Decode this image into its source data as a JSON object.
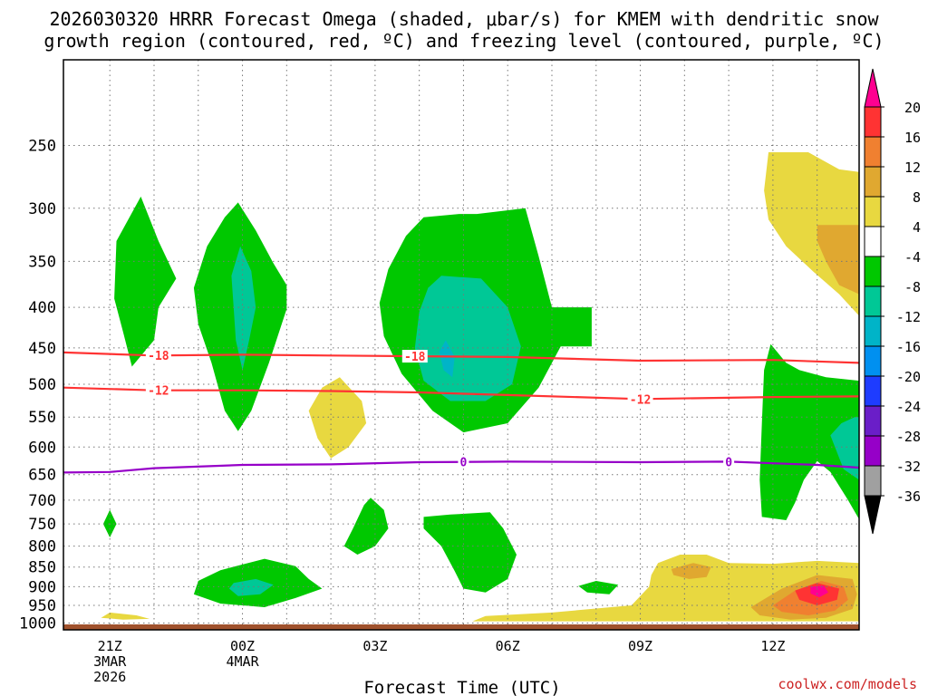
{
  "chart_data": {
    "type": "heatmap",
    "title_lines": [
      "2026030320 HRRR Forecast Omega (shaded, μbar/s) for KMEM with dendritic snow",
      "growth region (contoured, red, ºC) and freezing level (contoured, purple, ºC)"
    ],
    "xlabel": "Forecast Time (UTC)",
    "ylabel": "",
    "watermark": "coolwx.com/models",
    "x_ticks": [
      {
        "hour": 21,
        "lines": [
          "21Z",
          "3MAR",
          "2026"
        ]
      },
      {
        "hour": 24,
        "lines": [
          "00Z",
          "4MAR"
        ]
      },
      {
        "hour": 27,
        "lines": [
          "03Z"
        ]
      },
      {
        "hour": 30,
        "lines": [
          "06Z"
        ]
      },
      {
        "hour": 33,
        "lines": [
          "09Z"
        ]
      },
      {
        "hour": 36,
        "lines": [
          "12Z"
        ]
      }
    ],
    "xlim": [
      19.95,
      37.95
    ],
    "y_ticks": [
      250,
      300,
      350,
      400,
      450,
      500,
      550,
      600,
      650,
      700,
      750,
      800,
      850,
      900,
      950,
      1000
    ],
    "ylim_hpa": [
      195,
      1020
    ],
    "ground_top_hpa": 1004,
    "ground_color": "#a0522d",
    "colorbar": {
      "levels": [
        "20",
        "16",
        "12",
        "8",
        "4",
        "-4",
        "-8",
        "-12",
        "-16",
        "-20",
        "-24",
        "-28",
        "-32",
        "-36"
      ],
      "colors": [
        "#ff0090",
        "#ff3333",
        "#f08030",
        "#e0a830",
        "#e8d840",
        "#ffffff",
        "#00c800",
        "#00c896",
        "#00b4c8",
        "#0090f0",
        "#1e3cff",
        "#6a1ec8",
        "#9600c8",
        "#a0a0a0",
        "#000000"
      ]
    },
    "isotherms": [
      {
        "name": "dendritic-top",
        "label": "-18",
        "color": "#ff3333",
        "points": [
          [
            19.95,
            456
          ],
          [
            22,
            460
          ],
          [
            24,
            459
          ],
          [
            26,
            460
          ],
          [
            28,
            461
          ],
          [
            30,
            462
          ],
          [
            33,
            467
          ],
          [
            36,
            466
          ],
          [
            37.95,
            470
          ]
        ],
        "label_hours": [
          22.1,
          27.9
        ]
      },
      {
        "name": "dendritic-bottom",
        "label": "-12",
        "color": "#ff3333",
        "points": [
          [
            19.95,
            505
          ],
          [
            22,
            509
          ],
          [
            24,
            509
          ],
          [
            26,
            510
          ],
          [
            28,
            512
          ],
          [
            30,
            516
          ],
          [
            33,
            522
          ],
          [
            36,
            519
          ],
          [
            37.95,
            518
          ]
        ],
        "label_hours": [
          22.1,
          33.0
        ]
      },
      {
        "name": "freezing-level",
        "label": "0",
        "color": "#9600c8",
        "points": [
          [
            19.95,
            646
          ],
          [
            21,
            645
          ],
          [
            22,
            638
          ],
          [
            24,
            632
          ],
          [
            26,
            631
          ],
          [
            28,
            627
          ],
          [
            30,
            626
          ],
          [
            33,
            627
          ],
          [
            35,
            626
          ],
          [
            37,
            632
          ],
          [
            37.95,
            637
          ]
        ],
        "label_hours": [
          29.0,
          35.0
        ]
      }
    ],
    "omega_regions": [
      {
        "name": "omega-green-a",
        "level": "-4",
        "poly": [
          [
            21.7,
            290
          ],
          [
            22.1,
            330
          ],
          [
            22.5,
            368
          ],
          [
            22.1,
            400
          ],
          [
            22.0,
            440
          ],
          [
            21.5,
            475
          ],
          [
            21.3,
            430
          ],
          [
            21.1,
            390
          ],
          [
            21.15,
            330
          ]
        ]
      },
      {
        "name": "omega-green-b",
        "level": "-4",
        "poly": [
          [
            23.9,
            295
          ],
          [
            24.3,
            320
          ],
          [
            24.7,
            352
          ],
          [
            25.0,
            375
          ],
          [
            25.0,
            402
          ],
          [
            24.6,
            470
          ],
          [
            24.2,
            540
          ],
          [
            23.9,
            573
          ],
          [
            23.6,
            540
          ],
          [
            23.3,
            470
          ],
          [
            23.0,
            420
          ],
          [
            22.9,
            378
          ],
          [
            23.2,
            335
          ],
          [
            23.6,
            308
          ]
        ]
      },
      {
        "name": "omega-teal-b",
        "level": "-8",
        "poly": [
          [
            23.95,
            335
          ],
          [
            24.2,
            360
          ],
          [
            24.3,
            400
          ],
          [
            24.15,
            440
          ],
          [
            24.0,
            480
          ],
          [
            23.85,
            440
          ],
          [
            23.8,
            400
          ],
          [
            23.75,
            365
          ]
        ]
      },
      {
        "name": "omega-green-c",
        "level": "-4",
        "poly": [
          [
            28.1,
            308
          ],
          [
            28.9,
            305
          ],
          [
            29.3,
            305
          ],
          [
            30.4,
            300
          ],
          [
            30.7,
            345
          ],
          [
            31.0,
            400
          ],
          [
            31.9,
            400
          ],
          [
            31.9,
            448
          ],
          [
            31.2,
            448
          ],
          [
            30.7,
            505
          ],
          [
            30.0,
            560
          ],
          [
            29.0,
            575
          ],
          [
            28.3,
            540
          ],
          [
            27.6,
            485
          ],
          [
            27.2,
            435
          ],
          [
            27.1,
            395
          ],
          [
            27.3,
            358
          ],
          [
            27.7,
            325
          ]
        ]
      },
      {
        "name": "omega-teal-c",
        "level": "-8",
        "poly": [
          [
            28.5,
            365
          ],
          [
            29.4,
            368
          ],
          [
            30.0,
            400
          ],
          [
            30.3,
            448
          ],
          [
            30.1,
            500
          ],
          [
            29.5,
            525
          ],
          [
            28.7,
            525
          ],
          [
            28.1,
            495
          ],
          [
            27.9,
            450
          ],
          [
            28.0,
            405
          ],
          [
            28.2,
            378
          ]
        ]
      },
      {
        "name": "omega-cyan-c",
        "level": "-12",
        "poly": [
          [
            28.6,
            440
          ],
          [
            28.8,
            462
          ],
          [
            28.75,
            490
          ],
          [
            28.55,
            480
          ],
          [
            28.45,
            455
          ]
        ]
      },
      {
        "name": "omega-green-d",
        "level": "-4",
        "poly": [
          [
            21.0,
            720
          ],
          [
            21.15,
            750
          ],
          [
            21.0,
            780
          ],
          [
            20.85,
            750
          ]
        ]
      },
      {
        "name": "omega-green-e",
        "level": "-4",
        "poly": [
          [
            26.9,
            695
          ],
          [
            27.2,
            720
          ],
          [
            27.3,
            760
          ],
          [
            27.0,
            800
          ],
          [
            26.6,
            820
          ],
          [
            26.3,
            800
          ],
          [
            26.5,
            760
          ],
          [
            26.75,
            710
          ]
        ]
      },
      {
        "name": "omega-green-f",
        "level": "-4",
        "poly": [
          [
            28.7,
            730
          ],
          [
            29.6,
            725
          ],
          [
            29.9,
            760
          ],
          [
            30.2,
            820
          ],
          [
            30.0,
            880
          ],
          [
            29.5,
            915
          ],
          [
            29.0,
            905
          ],
          [
            28.8,
            860
          ],
          [
            28.5,
            800
          ],
          [
            28.1,
            760
          ],
          [
            28.1,
            735
          ]
        ]
      },
      {
        "name": "omega-green-g",
        "level": "-4",
        "poly": [
          [
            23.5,
            858
          ],
          [
            24.5,
            830
          ],
          [
            25.2,
            848
          ],
          [
            25.5,
            880
          ],
          [
            25.8,
            905
          ],
          [
            25.2,
            930
          ],
          [
            24.5,
            955
          ],
          [
            23.5,
            945
          ],
          [
            22.9,
            920
          ],
          [
            23.0,
            885
          ]
        ]
      },
      {
        "name": "omega-teal-g",
        "level": "-8",
        "poly": [
          [
            23.8,
            890
          ],
          [
            24.3,
            880
          ],
          [
            24.7,
            895
          ],
          [
            24.4,
            920
          ],
          [
            23.9,
            925
          ],
          [
            23.7,
            905
          ]
        ]
      },
      {
        "name": "omega-green-h",
        "level": "-4",
        "poly": [
          [
            32.0,
            885
          ],
          [
            32.5,
            895
          ],
          [
            32.3,
            920
          ],
          [
            31.8,
            915
          ],
          [
            31.6,
            898
          ]
        ]
      },
      {
        "name": "omega-green-i",
        "level": "-4",
        "poly": [
          [
            35.95,
            445
          ],
          [
            36.3,
            470
          ],
          [
            36.6,
            480
          ],
          [
            37.2,
            490
          ],
          [
            37.95,
            495
          ],
          [
            37.95,
            740
          ],
          [
            37.7,
            700
          ],
          [
            37.3,
            645
          ],
          [
            37.0,
            625
          ],
          [
            36.7,
            660
          ],
          [
            36.5,
            705
          ],
          [
            36.3,
            742
          ],
          [
            35.75,
            735
          ],
          [
            35.7,
            660
          ],
          [
            35.75,
            560
          ],
          [
            35.8,
            480
          ]
        ]
      },
      {
        "name": "omega-teal-i",
        "level": "-8",
        "poly": [
          [
            37.85,
            550
          ],
          [
            37.95,
            550
          ],
          [
            37.95,
            660
          ],
          [
            37.6,
            640
          ],
          [
            37.3,
            580
          ],
          [
            37.55,
            560
          ]
        ]
      },
      {
        "name": "omega-yellow-1",
        "level": "4",
        "poly": [
          [
            26.2,
            490
          ],
          [
            26.7,
            525
          ],
          [
            26.8,
            560
          ],
          [
            26.4,
            600
          ],
          [
            26.0,
            620
          ],
          [
            25.7,
            585
          ],
          [
            25.5,
            540
          ],
          [
            25.8,
            505
          ]
        ]
      },
      {
        "name": "omega-yellow-2",
        "level": "4",
        "poly": [
          [
            35.9,
            255
          ],
          [
            36.8,
            255
          ],
          [
            37.5,
            268
          ],
          [
            37.95,
            270
          ],
          [
            37.95,
            410
          ],
          [
            37.5,
            385
          ],
          [
            36.9,
            360
          ],
          [
            36.3,
            335
          ],
          [
            35.9,
            310
          ],
          [
            35.8,
            285
          ]
        ]
      },
      {
        "name": "omega-orange-2",
        "level": "8",
        "poly": [
          [
            37.0,
            315
          ],
          [
            37.95,
            315
          ],
          [
            37.95,
            385
          ],
          [
            37.5,
            375
          ],
          [
            37.2,
            350
          ],
          [
            37.0,
            330
          ]
        ]
      },
      {
        "name": "omega-yellow-3",
        "level": "4",
        "poly": [
          [
            21.0,
            970
          ],
          [
            21.6,
            978
          ],
          [
            21.9,
            988
          ],
          [
            21.3,
            990
          ],
          [
            20.8,
            985
          ]
        ]
      },
      {
        "name": "omega-yellow-4",
        "level": "4",
        "poly": [
          [
            33.4,
            840
          ],
          [
            33.9,
            820
          ],
          [
            34.5,
            820
          ],
          [
            35.0,
            840
          ],
          [
            36.0,
            842
          ],
          [
            37.0,
            835
          ],
          [
            37.95,
            840
          ],
          [
            37.95,
            995
          ],
          [
            31.5,
            995
          ],
          [
            29.2,
            995
          ],
          [
            29.5,
            980
          ],
          [
            31.0,
            970
          ],
          [
            32.8,
            950
          ],
          [
            33.2,
            900
          ],
          [
            33.25,
            870
          ]
        ]
      },
      {
        "name": "omega-orange-4a",
        "level": "8",
        "poly": [
          [
            33.7,
            855
          ],
          [
            34.2,
            840
          ],
          [
            34.6,
            850
          ],
          [
            34.5,
            875
          ],
          [
            34.1,
            880
          ],
          [
            33.75,
            870
          ]
        ]
      },
      {
        "name": "omega-orange-4b",
        "level": "8",
        "poly": [
          [
            35.5,
            955
          ],
          [
            36.2,
            905
          ],
          [
            37.0,
            870
          ],
          [
            37.8,
            880
          ],
          [
            37.9,
            920
          ],
          [
            37.8,
            960
          ],
          [
            37.2,
            985
          ],
          [
            36.4,
            990
          ],
          [
            35.7,
            978
          ]
        ]
      },
      {
        "name": "omega-darkorange-4",
        "level": "12",
        "poly": [
          [
            36.0,
            950
          ],
          [
            36.5,
            910
          ],
          [
            37.1,
            885
          ],
          [
            37.6,
            900
          ],
          [
            37.7,
            935
          ],
          [
            37.4,
            965
          ],
          [
            36.8,
            978
          ],
          [
            36.2,
            968
          ]
        ]
      },
      {
        "name": "omega-red-4",
        "level": "16",
        "poly": [
          [
            36.5,
            910
          ],
          [
            37.0,
            890
          ],
          [
            37.5,
            905
          ],
          [
            37.45,
            935
          ],
          [
            37.0,
            950
          ],
          [
            36.6,
            935
          ]
        ]
      },
      {
        "name": "omega-pink-4",
        "level": "20",
        "poly": [
          [
            36.85,
            900
          ],
          [
            37.15,
            897
          ],
          [
            37.25,
            915
          ],
          [
            37.05,
            928
          ],
          [
            36.85,
            918
          ]
        ]
      }
    ]
  }
}
